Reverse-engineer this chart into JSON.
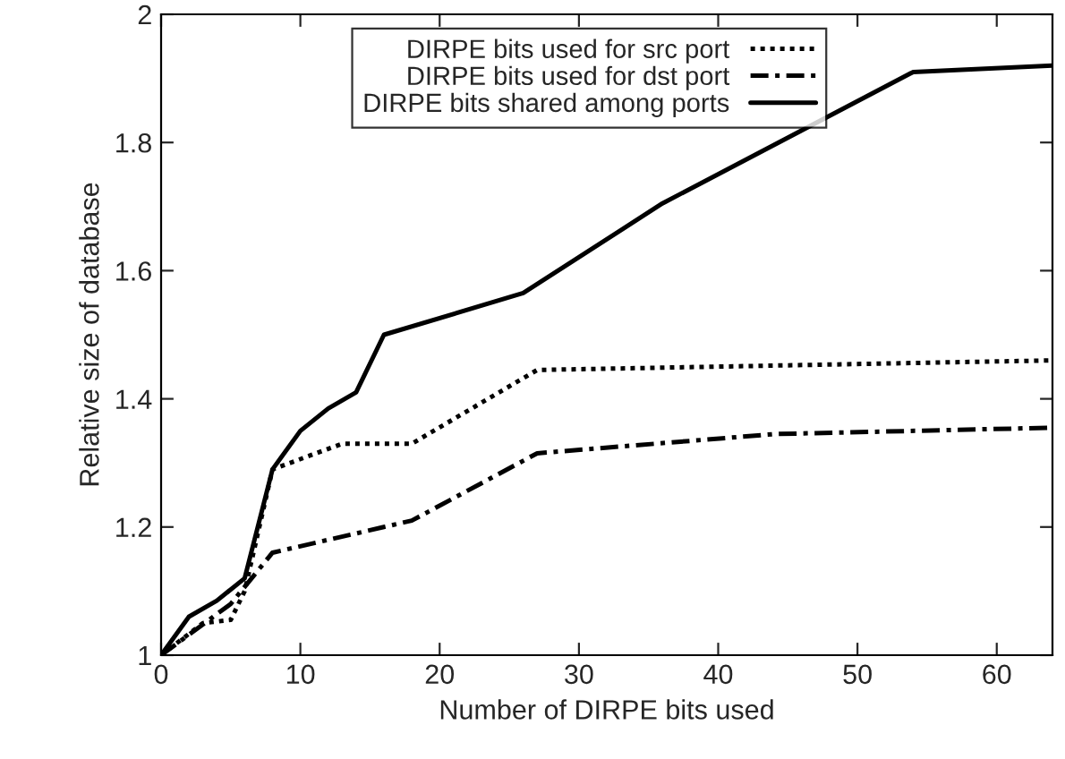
{
  "chart_data": {
    "type": "line",
    "xlabel": "Number of DIRPE bits used",
    "ylabel": "Relative size of database",
    "xlim": [
      0,
      64
    ],
    "ylim": [
      1,
      2
    ],
    "xticks": [
      0,
      10,
      20,
      30,
      40,
      50,
      60
    ],
    "yticks": [
      1,
      1.2,
      1.4,
      1.6,
      1.8,
      2
    ],
    "grid": false,
    "legend": "top right",
    "marker": "none",
    "series": [
      {
        "name": "DIRPE bits used for src port",
        "color": "#000000",
        "line_style": "dotted",
        "x": [
          0,
          3,
          5,
          6,
          8,
          13,
          18,
          27,
          64
        ],
        "values": [
          1,
          1.05,
          1.055,
          1.1,
          1.29,
          1.33,
          1.33,
          1.445,
          1.46
        ]
      },
      {
        "name": "DIRPE bits used for dst port",
        "color": "#000000",
        "line_style": "dashdot",
        "x": [
          0,
          5,
          8,
          16,
          18,
          27,
          44,
          64
        ],
        "values": [
          1,
          1.08,
          1.16,
          1.2,
          1.21,
          1.315,
          1.345,
          1.355
        ]
      },
      {
        "name": "DIRPE bits shared among ports",
        "color": "#000000",
        "line_style": "solid",
        "x": [
          0,
          2,
          4,
          6,
          8,
          10,
          12,
          14,
          16,
          26,
          36,
          54,
          64
        ],
        "values": [
          1,
          1.06,
          1.085,
          1.12,
          1.29,
          1.35,
          1.385,
          1.41,
          1.5,
          1.565,
          1.705,
          1.91,
          1.92
        ]
      }
    ]
  }
}
